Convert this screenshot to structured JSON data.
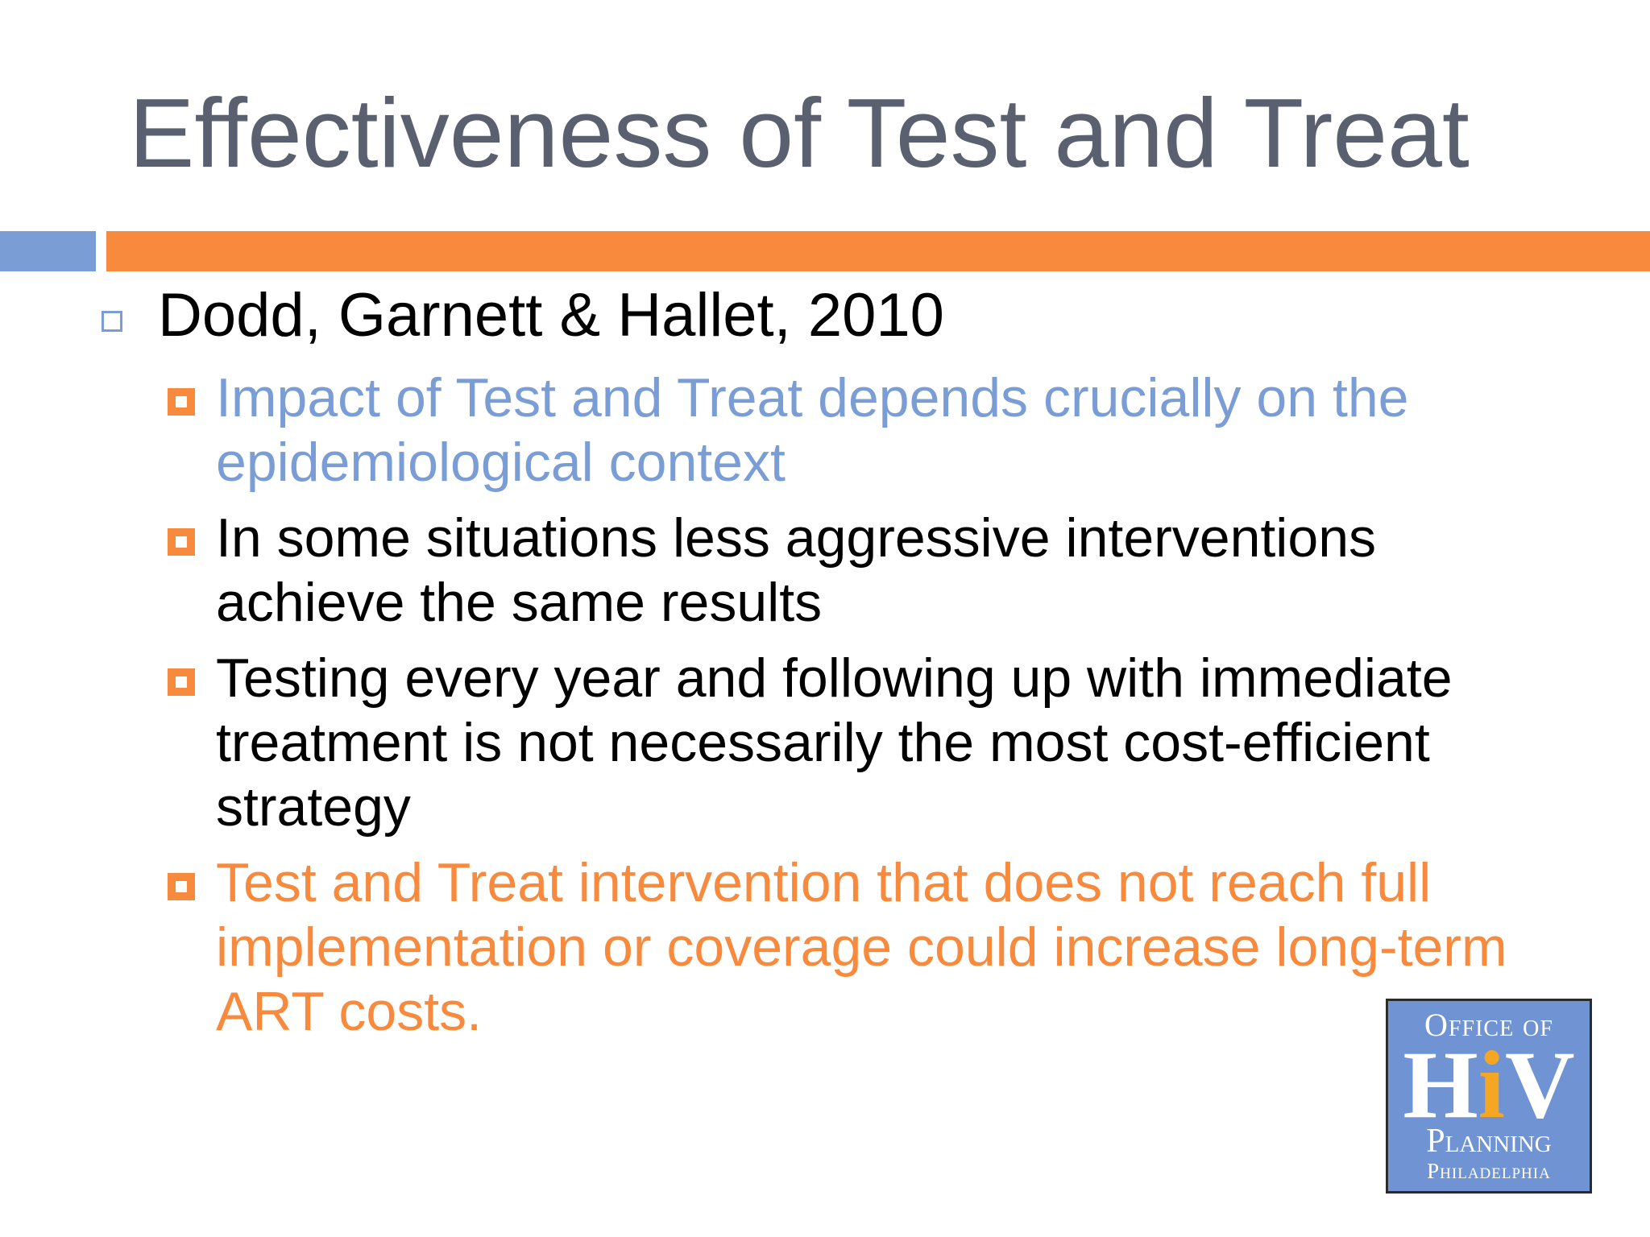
{
  "slide": {
    "title": "Effectiveness of Test and Treat",
    "level1": {
      "text": "Dodd, Garnett & Hallet, 2010"
    },
    "bullets": [
      {
        "text": "Impact of Test and Treat depends crucially on the epidemiological context",
        "color": "#7a9dd6"
      },
      {
        "text": "In some situations less aggressive interventions achieve the same results",
        "color": "#000000"
      },
      {
        "text": "Testing every year and following up with immediate treatment is not necessarily the most cost-efficient strategy",
        "color": "#000000"
      },
      {
        "text": "Test and Treat intervention that does not reach full implementation or coverage could increase long-term ART costs.",
        "color": "#f78a3d"
      }
    ]
  },
  "logo": {
    "top": "Office of",
    "hiv_h": "H",
    "hiv_i": "i",
    "hiv_v": "V",
    "middle": "Planning",
    "bottom": "Philadelphia",
    "bg_color": "#6f93d3",
    "accent_color": "#f5a623"
  },
  "colors": {
    "title": "#5a6070",
    "blue_accent": "#7a9dd6",
    "orange_accent": "#f78a3d"
  }
}
